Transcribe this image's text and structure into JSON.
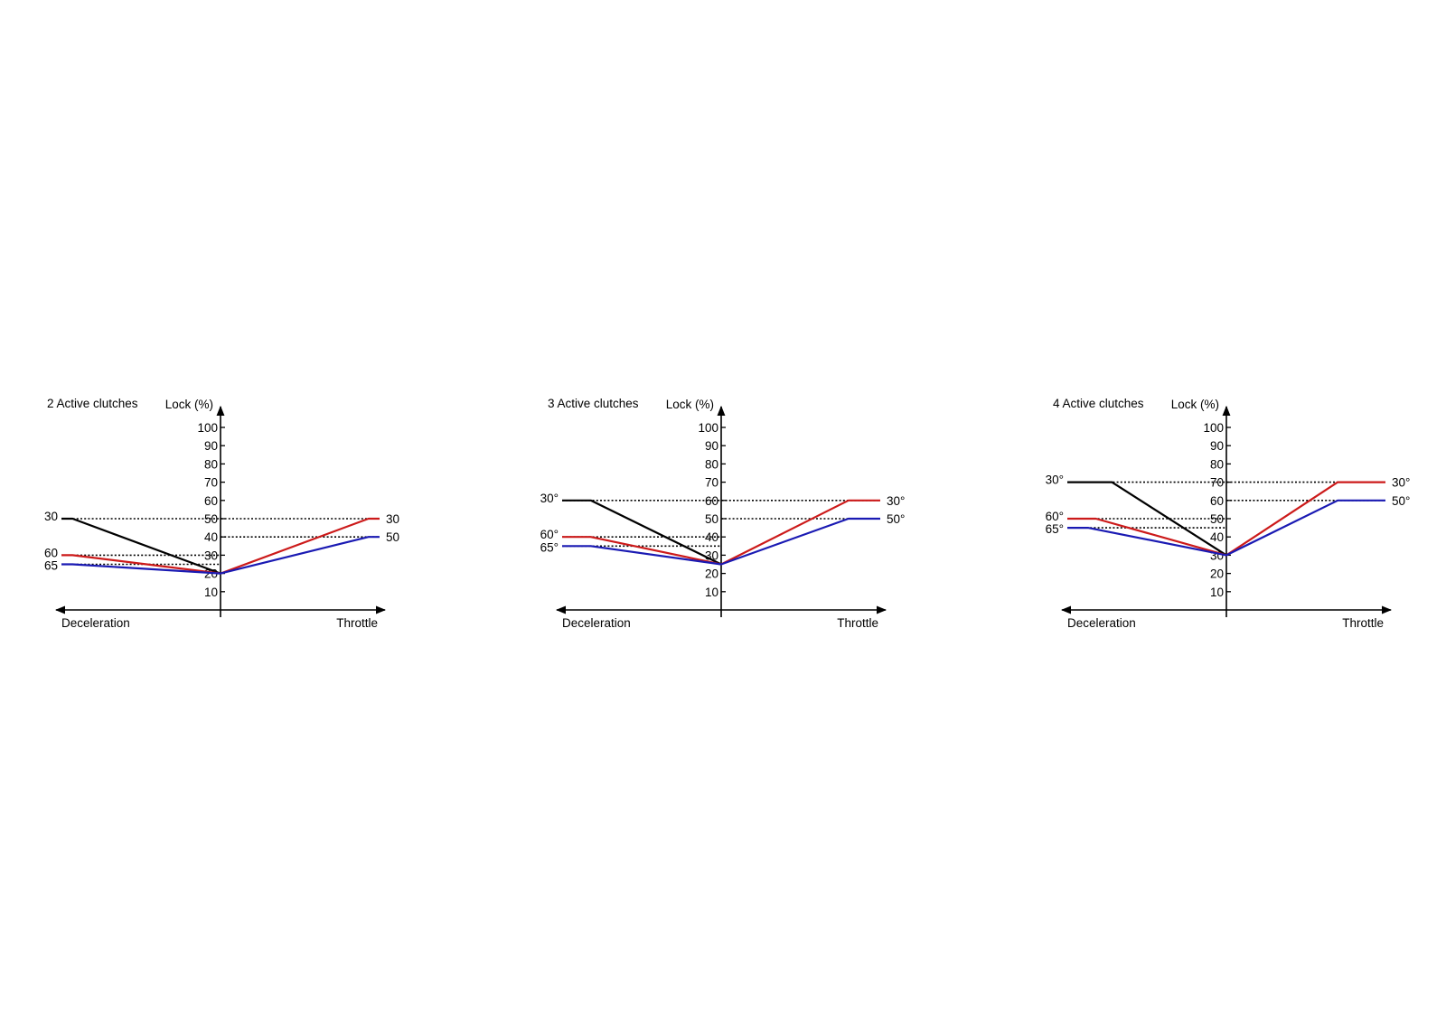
{
  "colors": {
    "black_series": "#000000",
    "red_series": "#cc1a1a",
    "blue_series": "#1a1ab3",
    "axis": "#000000",
    "reference_line": "#000000"
  },
  "chart_data": [
    {
      "type": "line",
      "title": "2 Active clutches",
      "ylabel": "Lock (%)",
      "left_label": "Deceleration",
      "right_label": "Throttle",
      "yticks": [
        "10",
        "20",
        "30",
        "40",
        "50",
        "60",
        "70",
        "80",
        "90",
        "100"
      ],
      "ylim": [
        0,
        100
      ],
      "x_domain": [
        -1,
        1
      ],
      "grid": false,
      "series": [
        {
          "color": "black",
          "start_label": "30",
          "end_label": "",
          "points": [
            [
              -1,
              50
            ],
            [
              -0.93,
              50
            ],
            [
              0,
              20
            ]
          ]
        },
        {
          "color": "red",
          "start_label": "60",
          "end_label": "30",
          "points": [
            [
              -1,
              30
            ],
            [
              -0.93,
              30
            ],
            [
              0,
              20
            ],
            [
              0.93,
              50
            ],
            [
              1,
              50
            ]
          ]
        },
        {
          "color": "blue",
          "start_label": "65",
          "end_label": "50",
          "points": [
            [
              -1,
              25
            ],
            [
              -0.93,
              25
            ],
            [
              0,
              20
            ],
            [
              0.93,
              40
            ],
            [
              1,
              40
            ]
          ]
        }
      ],
      "reference_lines": [
        {
          "y": 50,
          "from": -1,
          "to": 1
        },
        {
          "y": 40,
          "from": 0,
          "to": 1
        },
        {
          "y": 30,
          "from": -1,
          "to": 0
        },
        {
          "y": 25,
          "from": -1,
          "to": 0
        }
      ]
    },
    {
      "type": "line",
      "title": "3 Active clutches",
      "ylabel": "Lock (%)",
      "left_label": "Deceleration",
      "right_label": "Throttle",
      "yticks": [
        "10",
        "20",
        "30",
        "40",
        "50",
        "60",
        "70",
        "80",
        "90",
        "100"
      ],
      "ylim": [
        0,
        100
      ],
      "x_domain": [
        -1,
        1
      ],
      "grid": false,
      "series": [
        {
          "color": "black",
          "start_label": "30°",
          "end_label": "",
          "points": [
            [
              -1,
              60
            ],
            [
              -0.82,
              60
            ],
            [
              0,
              25
            ]
          ]
        },
        {
          "color": "red",
          "start_label": "60°",
          "end_label": "30°",
          "points": [
            [
              -1,
              40
            ],
            [
              -0.82,
              40
            ],
            [
              0,
              25
            ],
            [
              0.8,
              60
            ],
            [
              1,
              60
            ]
          ]
        },
        {
          "color": "blue",
          "start_label": "65°",
          "end_label": "50°",
          "points": [
            [
              -1,
              35
            ],
            [
              -0.82,
              35
            ],
            [
              0,
              25
            ],
            [
              0.8,
              50
            ],
            [
              1,
              50
            ]
          ]
        }
      ],
      "reference_lines": [
        {
          "y": 60,
          "from": -1,
          "to": 1
        },
        {
          "y": 50,
          "from": 0,
          "to": 1
        },
        {
          "y": 40,
          "from": -1,
          "to": 0
        },
        {
          "y": 35,
          "from": -1,
          "to": 0
        }
      ]
    },
    {
      "type": "line",
      "title": "4 Active clutches",
      "ylabel": "Lock (%)",
      "left_label": "Deceleration",
      "right_label": "Throttle",
      "yticks": [
        "10",
        "20",
        "30",
        "40",
        "50",
        "60",
        "70",
        "80",
        "90",
        "100"
      ],
      "ylim": [
        0,
        100
      ],
      "x_domain": [
        -1,
        1
      ],
      "grid": false,
      "series": [
        {
          "color": "black",
          "start_label": "30°",
          "end_label": "",
          "points": [
            [
              -1,
              70
            ],
            [
              -0.72,
              70
            ],
            [
              0,
              30
            ]
          ]
        },
        {
          "color": "red",
          "start_label": "60°",
          "end_label": "30°",
          "points": [
            [
              -1,
              50
            ],
            [
              -0.82,
              50
            ],
            [
              0,
              30
            ],
            [
              0.7,
              70
            ],
            [
              1,
              70
            ]
          ]
        },
        {
          "color": "blue",
          "start_label": "65°",
          "end_label": "50°",
          "points": [
            [
              -1,
              45
            ],
            [
              -0.87,
              45
            ],
            [
              0,
              30
            ],
            [
              0.7,
              60
            ],
            [
              1,
              60
            ]
          ]
        }
      ],
      "reference_lines": [
        {
          "y": 70,
          "from": -1,
          "to": 1
        },
        {
          "y": 60,
          "from": 0,
          "to": 1
        },
        {
          "y": 50,
          "from": -1,
          "to": 0
        },
        {
          "y": 45,
          "from": -1,
          "to": 0
        }
      ]
    }
  ]
}
